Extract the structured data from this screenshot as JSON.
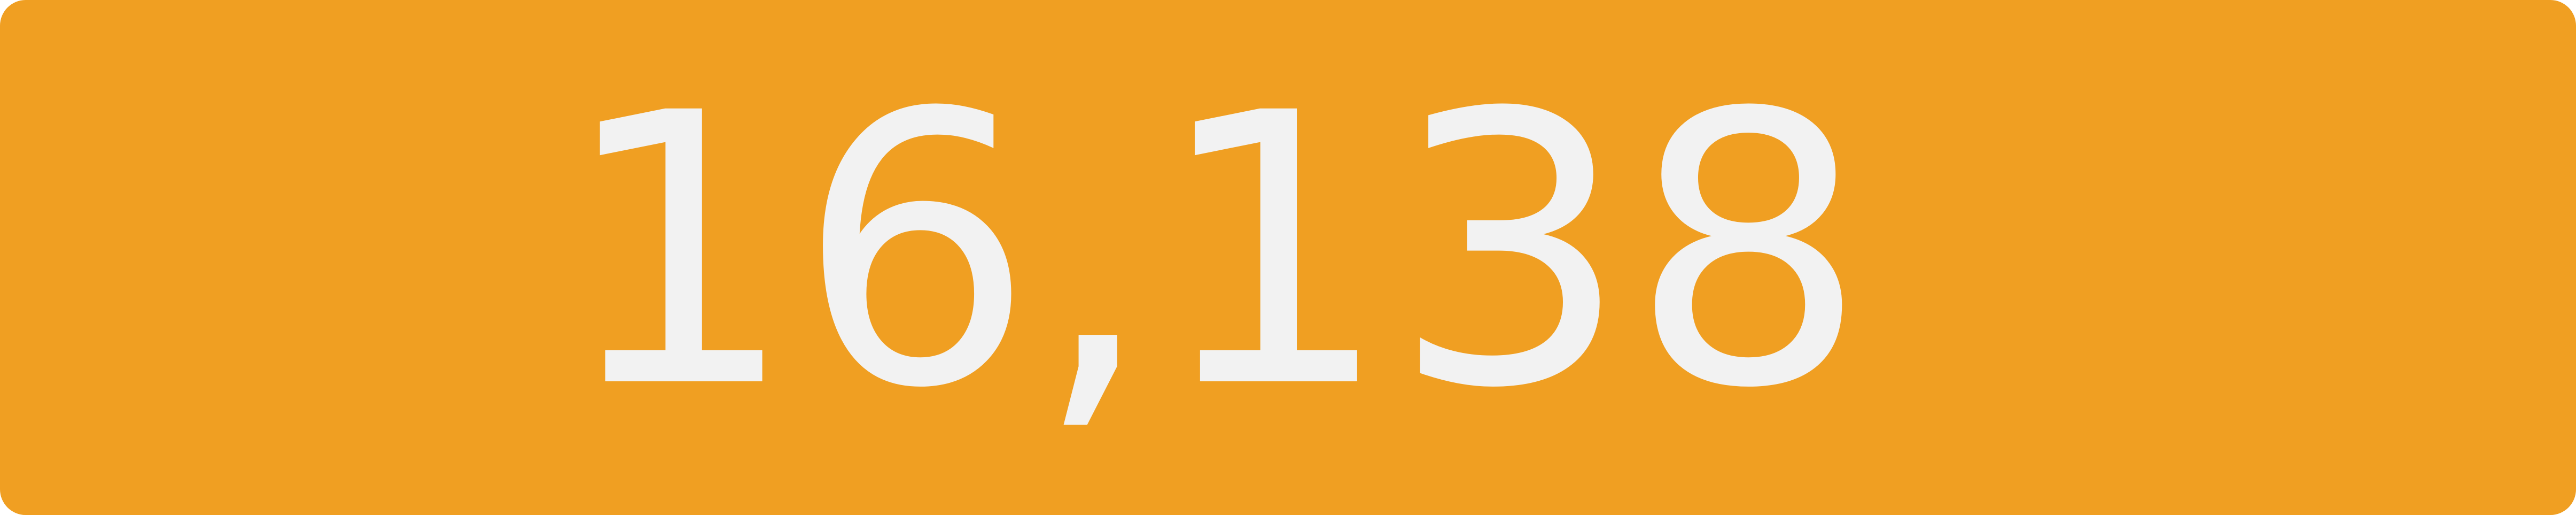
{
  "badge": {
    "value": "16,138",
    "background_color": "#F09F22",
    "text_color": "#F2F2F2"
  }
}
